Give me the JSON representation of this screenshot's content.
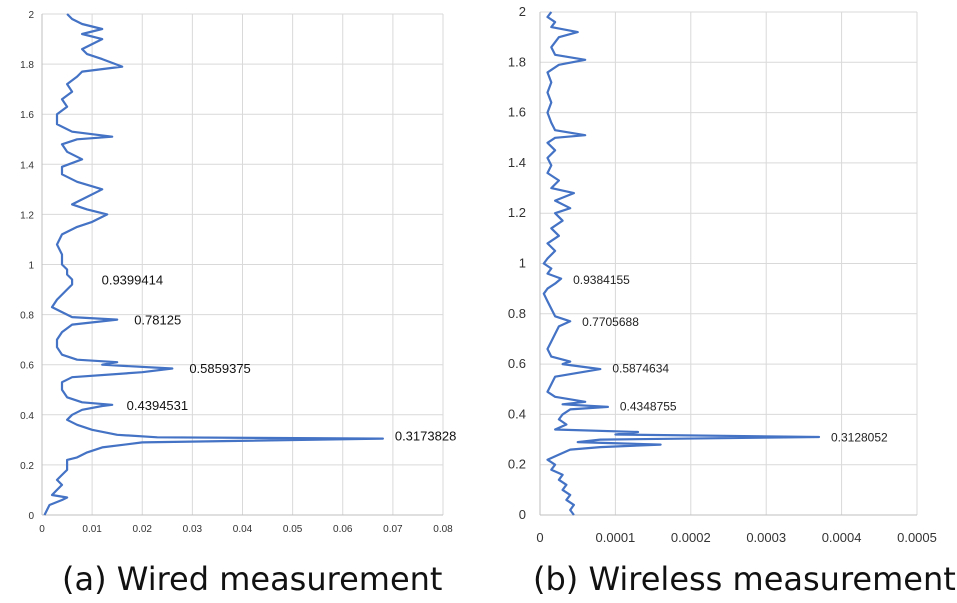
{
  "chart_data": [
    {
      "type": "line",
      "caption": "(a) Wired measurement",
      "xlim": [
        0,
        0.08
      ],
      "ylim": [
        0,
        2
      ],
      "x_ticks": [
        "0",
        "0.01",
        "0.02",
        "0.03",
        "0.04",
        "0.05",
        "0.06",
        "0.07",
        "0.08"
      ],
      "y_ticks": [
        "0",
        "0.2",
        "0.4",
        "0.6",
        "0.8",
        "1",
        "1.2",
        "1.4",
        "1.6",
        "1.8",
        "2"
      ],
      "grid": true,
      "line_color": "#4472c4",
      "series": [
        {
          "points": [
            [
              0.0005,
              0
            ],
            [
              0.001,
              0.02
            ],
            [
              0.0015,
              0.04
            ],
            [
              0.004,
              0.06
            ],
            [
              0.005,
              0.07
            ],
            [
              0.002,
              0.08
            ],
            [
              0.003,
              0.1
            ],
            [
              0.004,
              0.12
            ],
            [
              0.003,
              0.14
            ],
            [
              0.004,
              0.16
            ],
            [
              0.005,
              0.18
            ],
            [
              0.005,
              0.2
            ],
            [
              0.005,
              0.22
            ],
            [
              0.007,
              0.23
            ],
            [
              0.009,
              0.25
            ],
            [
              0.012,
              0.27
            ],
            [
              0.02,
              0.29
            ],
            [
              0.068,
              0.305
            ],
            [
              0.023,
              0.31
            ],
            [
              0.015,
              0.32
            ],
            [
              0.01,
              0.34
            ],
            [
              0.007,
              0.36
            ],
            [
              0.005,
              0.38
            ],
            [
              0.006,
              0.4
            ],
            [
              0.008,
              0.42
            ],
            [
              0.012,
              0.435
            ],
            [
              0.014,
              0.44
            ],
            [
              0.008,
              0.45
            ],
            [
              0.005,
              0.47
            ],
            [
              0.004,
              0.5
            ],
            [
              0.004,
              0.53
            ],
            [
              0.006,
              0.55
            ],
            [
              0.02,
              0.57
            ],
            [
              0.026,
              0.585
            ],
            [
              0.012,
              0.6
            ],
            [
              0.015,
              0.61
            ],
            [
              0.007,
              0.62
            ],
            [
              0.004,
              0.64
            ],
            [
              0.003,
              0.67
            ],
            [
              0.003,
              0.7
            ],
            [
              0.004,
              0.73
            ],
            [
              0.006,
              0.76
            ],
            [
              0.015,
              0.78
            ],
            [
              0.006,
              0.79
            ],
            [
              0.004,
              0.81
            ],
            [
              0.002,
              0.83
            ],
            [
              0.003,
              0.86
            ],
            [
              0.004,
              0.88
            ],
            [
              0.005,
              0.9
            ],
            [
              0.006,
              0.92
            ],
            [
              0.006,
              0.94
            ],
            [
              0.005,
              0.96
            ],
            [
              0.005,
              0.98
            ],
            [
              0.004,
              1.0
            ],
            [
              0.004,
              1.04
            ],
            [
              0.003,
              1.08
            ],
            [
              0.004,
              1.12
            ],
            [
              0.007,
              1.15
            ],
            [
              0.01,
              1.17
            ],
            [
              0.013,
              1.2
            ],
            [
              0.009,
              1.22
            ],
            [
              0.006,
              1.24
            ],
            [
              0.008,
              1.26
            ],
            [
              0.012,
              1.3
            ],
            [
              0.007,
              1.33
            ],
            [
              0.004,
              1.36
            ],
            [
              0.004,
              1.39
            ],
            [
              0.008,
              1.42
            ],
            [
              0.005,
              1.45
            ],
            [
              0.004,
              1.48
            ],
            [
              0.007,
              1.5
            ],
            [
              0.014,
              1.51
            ],
            [
              0.006,
              1.53
            ],
            [
              0.003,
              1.56
            ],
            [
              0.003,
              1.6
            ],
            [
              0.005,
              1.63
            ],
            [
              0.004,
              1.66
            ],
            [
              0.006,
              1.69
            ],
            [
              0.005,
              1.72
            ],
            [
              0.007,
              1.75
            ],
            [
              0.008,
              1.77
            ],
            [
              0.016,
              1.79
            ],
            [
              0.012,
              1.82
            ],
            [
              0.009,
              1.84
            ],
            [
              0.008,
              1.86
            ],
            [
              0.01,
              1.88
            ],
            [
              0.012,
              1.9
            ],
            [
              0.008,
              1.92
            ],
            [
              0.012,
              1.94
            ],
            [
              0.008,
              1.96
            ],
            [
              0.006,
              1.98
            ],
            [
              0.005,
              2.0
            ]
          ]
        }
      ],
      "peak_labels": [
        {
          "x": 0.068,
          "y": 0.3173828,
          "text": "0.3173828"
        },
        {
          "x": 0.0145,
          "y": 0.4394531,
          "text": "0.4394531"
        },
        {
          "x": 0.027,
          "y": 0.5859375,
          "text": "0.5859375"
        },
        {
          "x": 0.016,
          "y": 0.78125,
          "text": "0.78125"
        },
        {
          "x": 0.0095,
          "y": 0.9399414,
          "text": "0.9399414"
        }
      ]
    },
    {
      "type": "line",
      "caption": "(b) Wireless measurement",
      "xlim": [
        0,
        0.0005
      ],
      "ylim": [
        0,
        2
      ],
      "x_ticks": [
        "0",
        "0.0001",
        "0.0002",
        "0.0003",
        "0.0004",
        "0.0005"
      ],
      "y_ticks": [
        "0",
        "0.2",
        "0.4",
        "0.6",
        "0.8",
        "1",
        "1.2",
        "1.4",
        "1.6",
        "1.8",
        "2"
      ],
      "grid": true,
      "line_color": "#4472c4",
      "series": [
        {
          "points": [
            [
              4.5e-05,
              0
            ],
            [
              4e-05,
              0.02
            ],
            [
              4.5e-05,
              0.04
            ],
            [
              3.5e-05,
              0.06
            ],
            [
              4e-05,
              0.08
            ],
            [
              3e-05,
              0.1
            ],
            [
              3.5e-05,
              0.12
            ],
            [
              2.5e-05,
              0.14
            ],
            [
              3e-05,
              0.16
            ],
            [
              1.5e-05,
              0.18
            ],
            [
              2e-05,
              0.2
            ],
            [
              1e-05,
              0.22
            ],
            [
              2.5e-05,
              0.24
            ],
            [
              4e-05,
              0.26
            ],
            [
              8e-05,
              0.27
            ],
            [
              0.00016,
              0.28
            ],
            [
              5e-05,
              0.29
            ],
            [
              8e-05,
              0.3
            ],
            [
              0.00037,
              0.31
            ],
            [
              0.0001,
              0.32
            ],
            [
              0.00013,
              0.33
            ],
            [
              2e-05,
              0.34
            ],
            [
              3.5e-05,
              0.36
            ],
            [
              2.5e-05,
              0.38
            ],
            [
              3e-05,
              0.4
            ],
            [
              4e-05,
              0.42
            ],
            [
              9e-05,
              0.43
            ],
            [
              3e-05,
              0.44
            ],
            [
              6e-05,
              0.45
            ],
            [
              2e-05,
              0.47
            ],
            [
              1e-05,
              0.49
            ],
            [
              1.5e-05,
              0.52
            ],
            [
              2e-05,
              0.55
            ],
            [
              8e-05,
              0.58
            ],
            [
              3e-05,
              0.6
            ],
            [
              4e-05,
              0.61
            ],
            [
              1.5e-05,
              0.63
            ],
            [
              1e-05,
              0.66
            ],
            [
              1.5e-05,
              0.69
            ],
            [
              2e-05,
              0.72
            ],
            [
              2.5e-05,
              0.75
            ],
            [
              4e-05,
              0.77
            ],
            [
              2e-05,
              0.79
            ],
            [
              1.5e-05,
              0.82
            ],
            [
              1e-05,
              0.85
            ],
            [
              5e-06,
              0.88
            ],
            [
              1e-05,
              0.9
            ],
            [
              2e-05,
              0.92
            ],
            [
              2.8e-05,
              0.94
            ],
            [
              1e-05,
              0.96
            ],
            [
              1.5e-05,
              0.98
            ],
            [
              5e-06,
              1.0
            ],
            [
              1e-05,
              1.02
            ],
            [
              2e-05,
              1.05
            ],
            [
              1e-05,
              1.08
            ],
            [
              2.5e-05,
              1.11
            ],
            [
              1.5e-05,
              1.14
            ],
            [
              3e-05,
              1.17
            ],
            [
              2e-05,
              1.2
            ],
            [
              4e-05,
              1.22
            ],
            [
              2e-05,
              1.25
            ],
            [
              4.5e-05,
              1.28
            ],
            [
              1.5e-05,
              1.3
            ],
            [
              2.5e-05,
              1.33
            ],
            [
              1e-05,
              1.36
            ],
            [
              1.5e-05,
              1.39
            ],
            [
              1e-05,
              1.42
            ],
            [
              2e-05,
              1.45
            ],
            [
              1e-05,
              1.48
            ],
            [
              2e-05,
              1.5
            ],
            [
              6e-05,
              1.51
            ],
            [
              2e-05,
              1.53
            ],
            [
              1.5e-05,
              1.56
            ],
            [
              1e-05,
              1.6
            ],
            [
              1.5e-05,
              1.64
            ],
            [
              1e-05,
              1.68
            ],
            [
              1.5e-05,
              1.72
            ],
            [
              1e-05,
              1.76
            ],
            [
              2.5e-05,
              1.79
            ],
            [
              6e-05,
              1.81
            ],
            [
              2e-05,
              1.83
            ],
            [
              1.5e-05,
              1.86
            ],
            [
              2e-05,
              1.88
            ],
            [
              2.5e-05,
              1.9
            ],
            [
              5e-05,
              1.92
            ],
            [
              1.5e-05,
              1.94
            ],
            [
              2e-05,
              1.96
            ],
            [
              1e-05,
              1.98
            ],
            [
              1.5e-05,
              2.0
            ]
          ]
        }
      ],
      "peak_labels": [
        {
          "x": 0.00037,
          "y": 0.3128052,
          "text": "0.3128052"
        },
        {
          "x": 9e-05,
          "y": 0.4348755,
          "text": "0.4348755"
        },
        {
          "x": 8e-05,
          "y": 0.5874634,
          "text": "0.5874634"
        },
        {
          "x": 4e-05,
          "y": 0.7705688,
          "text": "0.7705688"
        },
        {
          "x": 2.8e-05,
          "y": 0.9384155,
          "text": "0.9384155"
        }
      ]
    }
  ],
  "captions": {
    "a": "(a) Wired measurement",
    "b": "(b) Wireless measurement"
  }
}
